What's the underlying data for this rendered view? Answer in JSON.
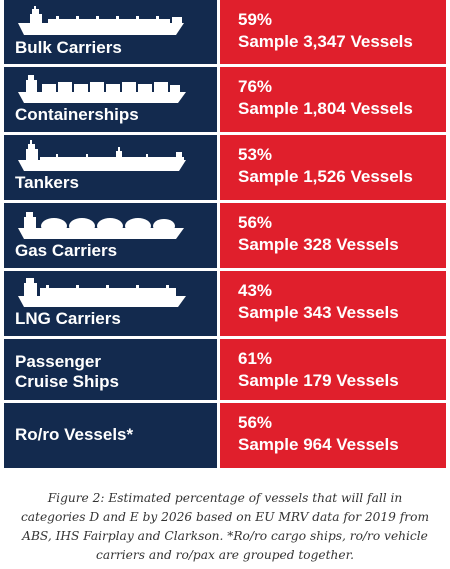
{
  "chart_data": {
    "type": "table",
    "rows": [
      {
        "vessel": "Bulk Carriers",
        "percent": 59,
        "percent_label": "59%",
        "sample_label": "Sample 3,347 Vessels",
        "sample_count": 3347,
        "icon": "bulk-carrier-icon"
      },
      {
        "vessel": "Containerships",
        "percent": 76,
        "percent_label": "76%",
        "sample_label": "Sample 1,804 Vessels",
        "sample_count": 1804,
        "icon": "containership-icon"
      },
      {
        "vessel": "Tankers",
        "percent": 53,
        "percent_label": "53%",
        "sample_label": "Sample 1,526 Vessels",
        "sample_count": 1526,
        "icon": "tanker-icon"
      },
      {
        "vessel": "Gas Carriers",
        "percent": 56,
        "percent_label": "56%",
        "sample_label": "Sample 328 Vessels",
        "sample_count": 328,
        "icon": "gas-carrier-icon"
      },
      {
        "vessel": "LNG Carriers",
        "percent": 43,
        "percent_label": "43%",
        "sample_label": "Sample 343 Vessels",
        "sample_count": 343,
        "icon": "lng-carrier-icon"
      },
      {
        "vessel_lines": [
          "Passenger",
          "Cruise Ships"
        ],
        "percent": 61,
        "percent_label": "61%",
        "sample_label": "Sample 179 Vessels",
        "sample_count": 179
      },
      {
        "vessel": "Ro/ro Vessels*",
        "percent": 56,
        "percent_label": "56%",
        "sample_label": "Sample 964 Vessels",
        "sample_count": 964
      }
    ],
    "caption": "Figure 2: Estimated percentage of vessels that will fall in categories D and E by 2026 based on EU MRV data for 2019 from ABS, IHS Fairplay and Clarkson. *Ro/ro cargo ships, ro/ro vehicle carriers and ro/pax are grouped together."
  },
  "colors": {
    "left_panel": "#132a4e",
    "right_panel": "#e01f2c",
    "text": "#ffffff",
    "caption_text": "#333333"
  }
}
